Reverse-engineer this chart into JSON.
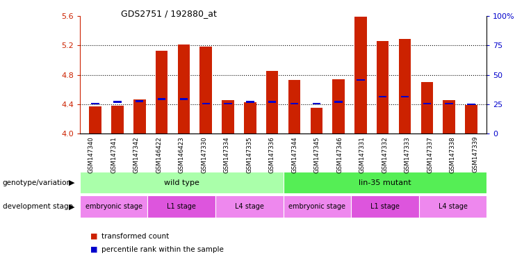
{
  "title": "GDS2751 / 192880_at",
  "samples": [
    "GSM147340",
    "GSM147341",
    "GSM147342",
    "GSM146422",
    "GSM146423",
    "GSM147330",
    "GSM147334",
    "GSM147335",
    "GSM147336",
    "GSM147344",
    "GSM147345",
    "GSM147346",
    "GSM147331",
    "GSM147332",
    "GSM147333",
    "GSM147337",
    "GSM147338",
    "GSM147339"
  ],
  "bar_values": [
    4.37,
    4.38,
    4.46,
    5.13,
    5.21,
    5.18,
    4.45,
    4.43,
    4.85,
    4.73,
    4.35,
    4.74,
    5.59,
    5.26,
    5.29,
    4.7,
    4.45,
    4.39
  ],
  "blue_values": [
    4.41,
    4.43,
    4.44,
    4.47,
    4.47,
    4.41,
    4.41,
    4.43,
    4.43,
    4.41,
    4.41,
    4.43,
    4.73,
    4.5,
    4.5,
    4.41,
    4.41,
    4.4
  ],
  "ylim": [
    4.0,
    5.6
  ],
  "yticks_left": [
    4.0,
    4.4,
    4.8,
    5.2,
    5.6
  ],
  "yticks_right": [
    0,
    25,
    50,
    75,
    100
  ],
  "ytick_right_labels": [
    "0",
    "25",
    "50",
    "75",
    "100%"
  ],
  "bar_color": "#cc2200",
  "blue_color": "#0000cc",
  "bg_color": "#ffffff",
  "left_ylabel_color": "#cc2200",
  "right_ylabel_color": "#0000cc",
  "genotype_groups": [
    {
      "label": "wild type",
      "start": 0,
      "end": 9,
      "color": "#aaffaa"
    },
    {
      "label": "lin-35 mutant",
      "start": 9,
      "end": 18,
      "color": "#55ee55"
    }
  ],
  "dev_stage_groups": [
    {
      "label": "embryonic stage",
      "start": 0,
      "end": 3,
      "color": "#ee88ee"
    },
    {
      "label": "L1 stage",
      "start": 3,
      "end": 6,
      "color": "#dd55dd"
    },
    {
      "label": "L4 stage",
      "start": 6,
      "end": 9,
      "color": "#ee88ee"
    },
    {
      "label": "embryonic stage",
      "start": 9,
      "end": 12,
      "color": "#ee88ee"
    },
    {
      "label": "L1 stage",
      "start": 12,
      "end": 15,
      "color": "#dd55dd"
    },
    {
      "label": "L4 stage",
      "start": 15,
      "end": 18,
      "color": "#ee88ee"
    }
  ],
  "legend_items": [
    {
      "label": "transformed count",
      "color": "#cc2200"
    },
    {
      "label": "percentile rank within the sample",
      "color": "#0000cc"
    }
  ]
}
